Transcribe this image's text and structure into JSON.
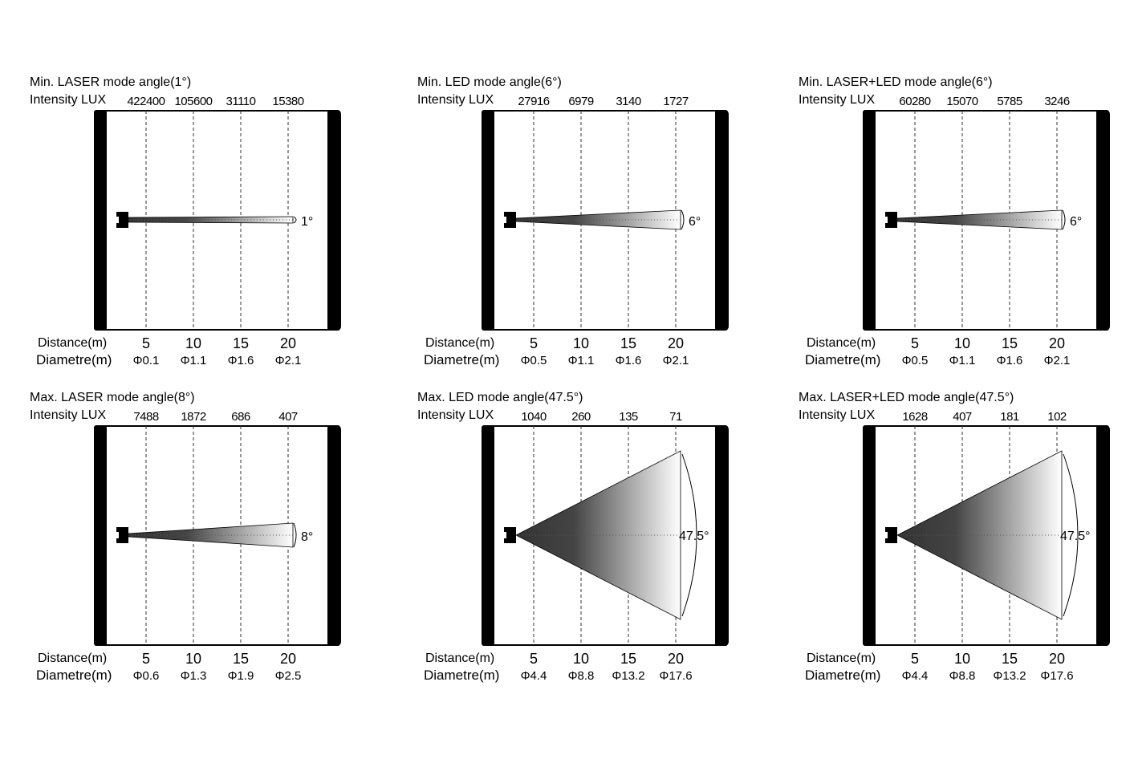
{
  "labels": {
    "intensity": "Intensity LUX",
    "distance": "Distance(m)",
    "diametre": "Diametre(m)"
  },
  "distances": [
    "5",
    "10",
    "15",
    "20"
  ],
  "colors": {
    "frame": "#000000",
    "beam_dark": "#333333",
    "beam_light": "#ffffff"
  },
  "panels": [
    {
      "title": "Min. LASER mode angle(1°)",
      "angle": "1°",
      "intensity": [
        "422400",
        "105600",
        "31110",
        "15380"
      ],
      "diametre": [
        "Φ0.1",
        "Φ1.1",
        "Φ1.6",
        "Φ2.1"
      ]
    },
    {
      "title": "Min. LED mode angle(6°)",
      "angle": "6°",
      "intensity": [
        "27916",
        "6979",
        "3140",
        "1727"
      ],
      "diametre": [
        "Φ0.5",
        "Φ1.1",
        "Φ1.6",
        "Φ2.1"
      ]
    },
    {
      "title": "Min. LASER+LED mode angle(6°)",
      "angle": "6°",
      "intensity": [
        "60280",
        "15070",
        "5785",
        "3246"
      ],
      "diametre": [
        "Φ0.5",
        "Φ1.1",
        "Φ1.6",
        "Φ2.1"
      ]
    },
    {
      "title": "Max. LASER mode angle(8°)",
      "angle": "8°",
      "intensity": [
        "7488",
        "1872",
        "686",
        "407"
      ],
      "diametre": [
        "Φ0.6",
        "Φ1.3",
        "Φ1.9",
        "Φ2.5"
      ]
    },
    {
      "title": "Max. LED mode angle(47.5°)",
      "angle": "47.5°",
      "intensity": [
        "1040",
        "260",
        "135",
        "71"
      ],
      "diametre": [
        "Φ4.4",
        "Φ8.8",
        "Φ13.2",
        "Φ17.6"
      ]
    },
    {
      "title": "Max. LASER+LED mode angle(47.5°)",
      "angle": "47.5°",
      "intensity": [
        "1628",
        "407",
        "181",
        "102"
      ],
      "diametre": [
        "Φ4.4",
        "Φ8.8",
        "Φ13.2",
        "Φ17.6"
      ]
    }
  ]
}
